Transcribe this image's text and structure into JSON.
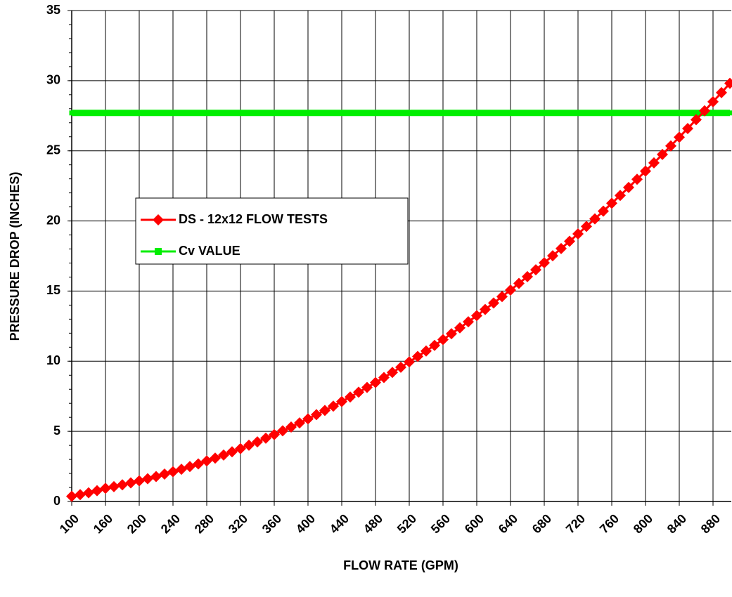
{
  "chart_data": {
    "type": "line",
    "xlabel": "FLOW RATE (GPM)",
    "ylabel": "PRESSURE DROP (INCHES)",
    "categories": [
      "100",
      null,
      null,
      null,
      "160",
      null,
      null,
      null,
      "200",
      null,
      null,
      null,
      "240",
      null,
      null,
      null,
      "280",
      null,
      null,
      null,
      "320",
      null,
      null,
      null,
      "360",
      null,
      null,
      null,
      "400",
      null,
      null,
      null,
      "440",
      null,
      null,
      null,
      "480",
      null,
      null,
      null,
      "520",
      null,
      null,
      null,
      "560",
      null,
      null,
      null,
      "600",
      null,
      null,
      null,
      "640",
      null,
      null,
      null,
      "680",
      null,
      null,
      null,
      "720",
      null,
      null,
      null,
      "760",
      null,
      null,
      null,
      "800",
      null,
      null,
      null,
      "840",
      null,
      null,
      null,
      "880",
      null,
      null
    ],
    "series": [
      {
        "name": "DS - 12x12 FLOW TESTS",
        "color": "#ff0000",
        "marker": "diamond",
        "values": [
          0.37,
          0.49,
          0.62,
          0.77,
          0.94,
          1.06,
          1.19,
          1.33,
          1.47,
          1.62,
          1.78,
          1.95,
          2.12,
          2.3,
          2.49,
          2.68,
          2.89,
          3.09,
          3.31,
          3.54,
          3.77,
          4.01,
          4.25,
          4.51,
          4.77,
          5.04,
          5.31,
          5.6,
          5.89,
          6.19,
          6.49,
          6.8,
          7.12,
          7.45,
          7.79,
          8.13,
          8.48,
          8.84,
          9.2,
          9.57,
          9.95,
          10.34,
          10.73,
          11.13,
          11.54,
          11.96,
          12.38,
          12.81,
          13.25,
          13.69,
          14.15,
          14.61,
          15.07,
          15.55,
          16.03,
          16.52,
          17.02,
          17.52,
          18.03,
          18.55,
          19.08,
          19.61,
          20.15,
          20.7,
          21.26,
          21.82,
          22.39,
          22.97,
          23.55,
          24.14,
          24.74,
          25.35,
          25.97,
          26.59,
          27.22,
          27.85,
          28.5,
          29.15,
          29.81
        ]
      },
      {
        "name": "Cv VALUE",
        "color": "#00ee00",
        "marker": "square",
        "values": [
          27.7,
          27.7,
          27.7,
          27.7,
          27.7,
          27.7,
          27.7,
          27.7,
          27.7,
          27.7,
          27.7,
          27.7,
          27.7,
          27.7,
          27.7,
          27.7,
          27.7,
          27.7,
          27.7,
          27.7,
          27.7,
          27.7,
          27.7,
          27.7,
          27.7,
          27.7,
          27.7,
          27.7,
          27.7,
          27.7,
          27.7,
          27.7,
          27.7,
          27.7,
          27.7,
          27.7,
          27.7,
          27.7,
          27.7,
          27.7,
          27.7,
          27.7,
          27.7,
          27.7,
          27.7,
          27.7,
          27.7,
          27.7,
          27.7,
          27.7,
          27.7,
          27.7,
          27.7,
          27.7,
          27.7,
          27.7,
          27.7,
          27.7,
          27.7,
          27.7,
          27.7,
          27.7,
          27.7,
          27.7,
          27.7,
          27.7,
          27.7,
          27.7,
          27.7,
          27.7,
          27.7,
          27.7,
          27.7,
          27.7,
          27.7,
          27.7,
          27.7,
          27.7,
          27.7
        ]
      }
    ],
    "ylim": [
      0,
      35
    ],
    "yticks": [
      0,
      5,
      10,
      15,
      20,
      25,
      30,
      35
    ],
    "grid": true
  }
}
